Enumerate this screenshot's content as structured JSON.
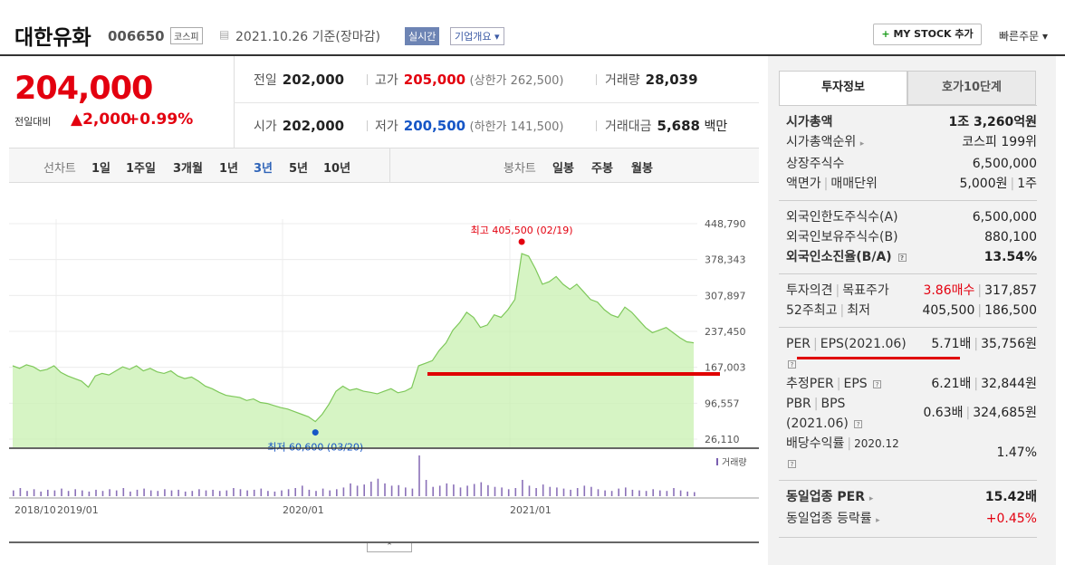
{
  "header": {
    "company_name": "대한유화",
    "code": "006650",
    "market_badge": "코스피",
    "date": "2021.10.26 기준(장마감)",
    "realtime_badge": "실시간",
    "overview_button": "기업개요",
    "mystock_button": "MY STOCK 추가",
    "quick_order": "빠른주문"
  },
  "price": {
    "current": "204,000",
    "change_label": "전일대비",
    "change": "2,000",
    "change_pct": "+0.99%",
    "prev_close_label": "전일",
    "prev_close": "202,000",
    "high_label": "고가",
    "high": "205,000",
    "upper_limit": "(상한가 262,500)",
    "volume_label": "거래량",
    "volume": "28,039",
    "open_label": "시가",
    "open": "202,000",
    "low_label": "저가",
    "low": "200,500",
    "lower_limit": "(하한가 141,500)",
    "value_label": "거래대금",
    "value": "5,688",
    "value_unit": "백만"
  },
  "period_tabs": {
    "line_label": "선차트",
    "line": [
      "1일",
      "1주일",
      "3개월",
      "1년",
      "3년",
      "5년",
      "10년"
    ],
    "selected": "3년",
    "candle_label": "봉차트",
    "candle": [
      "일봉",
      "주봉",
      "월봉"
    ]
  },
  "chart_data": {
    "type": "area",
    "y_ticks": [
      "448,790",
      "378,343",
      "307,897",
      "237,450",
      "167,003",
      "96,557",
      "26,110"
    ],
    "ylim": [
      26110,
      448790
    ],
    "x_tick_labels": [
      "2018/10",
      "2019/01",
      "2020/01",
      "2021/01"
    ],
    "high_annotation": "최고 405,500 (02/19)",
    "low_annotation": "최저 60,600 (03/20)",
    "volume_label": "거래량",
    "series": [
      {
        "values": [
          170000,
          165000,
          172000,
          168000,
          160000,
          163000,
          170000,
          157000,
          150000,
          145000,
          140000,
          128000,
          150000,
          155000,
          152000,
          160000,
          168000,
          163000,
          170000,
          160000,
          165000,
          158000,
          155000,
          160000,
          150000,
          145000,
          148000,
          140000,
          130000,
          125000,
          118000,
          112000,
          110000,
          108000,
          102000,
          105000,
          98000,
          96000,
          92000,
          88000,
          85000,
          80000,
          75000,
          70000,
          60600,
          75000,
          95000,
          120000,
          130000,
          122000,
          125000,
          120000,
          118000,
          115000,
          120000,
          125000,
          117000,
          120000,
          127000,
          170000,
          175000,
          180000,
          200000,
          215000,
          240000,
          255000,
          275000,
          265000,
          245000,
          250000,
          270000,
          265000,
          280000,
          300000,
          390000,
          385000,
          360000,
          330000,
          335000,
          345000,
          330000,
          320000,
          330000,
          315000,
          300000,
          295000,
          280000,
          270000,
          265000,
          285000,
          275000,
          260000,
          245000,
          235000,
          240000,
          245000,
          235000,
          225000,
          217000,
          215000
        ]
      }
    ],
    "volume_values": [
      10,
      14,
      9,
      12,
      8,
      11,
      10,
      13,
      9,
      12,
      10,
      8,
      11,
      9,
      12,
      10,
      14,
      8,
      11,
      13,
      10,
      9,
      12,
      10,
      11,
      8,
      9,
      12,
      10,
      11,
      9,
      10,
      14,
      12,
      10,
      11,
      13,
      9,
      8,
      10,
      12,
      14,
      18,
      11,
      9,
      13,
      10,
      12,
      15,
      22,
      18,
      20,
      25,
      30,
      22,
      18,
      19,
      15,
      13,
      70,
      28,
      16,
      18,
      22,
      20,
      15,
      18,
      21,
      24,
      19,
      16,
      15,
      12,
      14,
      28,
      18,
      14,
      20,
      16,
      15,
      13,
      11,
      14,
      18,
      16,
      12,
      10,
      9,
      13,
      15,
      11,
      10,
      9,
      12,
      10,
      9,
      14,
      10,
      8,
      7
    ]
  },
  "investment": {
    "tabs": [
      "투자정보",
      "호가10단계"
    ],
    "sec1": [
      {
        "k": "시가총액",
        "v": "1조 3,260억원"
      },
      {
        "k": "시가총액순위",
        "v": "코스피 199위"
      },
      {
        "k": "상장주식수",
        "v": "6,500,000"
      },
      {
        "k": "액면가",
        "k2": "매매단위",
        "v": "5,000원",
        "v2": "1주"
      }
    ],
    "sec2": [
      {
        "k": "외국인한도주식수(A)",
        "v": "6,500,000"
      },
      {
        "k": "외국인보유주식수(B)",
        "v": "880,100"
      },
      {
        "k": "외국인소진율(B/A)",
        "v": "13.54%"
      }
    ],
    "sec3": [
      {
        "k": "투자의견",
        "k2": "목표주가",
        "v": "3.86매수",
        "v2": "317,857"
      },
      {
        "k": "52주최고",
        "k2": "최저",
        "v": "405,500",
        "v2": "186,500"
      }
    ],
    "sec4": {
      "per_label": "PER",
      "eps_label": "EPS(2021.06)",
      "per": "5.71배",
      "eps": "35,756원",
      "est_per_label": "추정PER",
      "est_eps_label": "EPS",
      "est_per": "6.21배",
      "est_eps": "32,844원",
      "pbr_label": "PBR",
      "bps_label": "BPS",
      "pbr_date": "(2021.06)",
      "pbr": "0.63배",
      "bps": "324,685원",
      "div_label": "배당수익률",
      "div_date": "2020.12",
      "div": "1.47%"
    },
    "sec5": [
      {
        "k": "동일업종 PER",
        "v": "15.42배"
      },
      {
        "k": "동일업종 등락률",
        "v": "+0.45%"
      }
    ],
    "colors": {
      "up": "#e3000f",
      "down": "#1656c6",
      "area": "#c8f0b0",
      "line": "#7ec85a",
      "annotation_line": "#e00000"
    }
  }
}
